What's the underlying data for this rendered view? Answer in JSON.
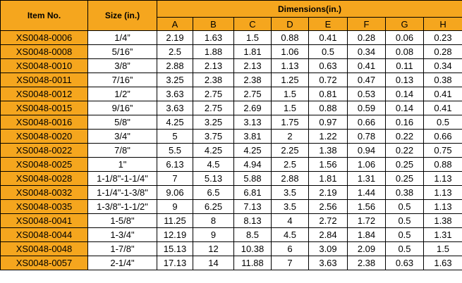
{
  "table": {
    "header": {
      "item": "Item No.",
      "size": "Size  (in.)",
      "dimensions": "Dimensions(in.)"
    },
    "columns": [
      "A",
      "B",
      "C",
      "D",
      "E",
      "F",
      "G",
      "H"
    ],
    "rows": [
      [
        "XS0048-0006",
        "1/4”",
        2.19,
        1.63,
        1.5,
        0.88,
        0.41,
        0.28,
        0.06,
        0.23
      ],
      [
        "XS0048-0008",
        "5/16”",
        2.5,
        1.88,
        1.81,
        1.06,
        0.5,
        0.34,
        0.08,
        0.28
      ],
      [
        "XS0048-0010",
        "3/8”",
        2.88,
        2.13,
        2.13,
        1.13,
        0.63,
        0.41,
        0.11,
        0.34
      ],
      [
        "XS0048-0011",
        "7/16”",
        3.25,
        2.38,
        2.38,
        1.25,
        0.72,
        0.47,
        0.13,
        0.38
      ],
      [
        "XS0048-0012",
        "1/2”",
        3.63,
        2.75,
        2.75,
        1.5,
        0.81,
        0.53,
        0.14,
        0.41
      ],
      [
        "XS0048-0015",
        "9/16”",
        3.63,
        2.75,
        2.69,
        1.5,
        0.88,
        0.59,
        0.14,
        0.41
      ],
      [
        "XS0048-0016",
        "5/8\"",
        4.25,
        3.25,
        3.13,
        1.75,
        0.97,
        0.66,
        0.16,
        0.5
      ],
      [
        "XS0048-0020",
        "3/4\"",
        5,
        3.75,
        3.81,
        2,
        1.22,
        0.78,
        0.22,
        0.66
      ],
      [
        "XS0048-0022",
        "7/8\"",
        5.5,
        4.25,
        4.25,
        2.25,
        1.38,
        0.94,
        0.22,
        0.75
      ],
      [
        "XS0048-0025",
        "1\"",
        6.13,
        4.5,
        4.94,
        2.5,
        1.56,
        1.06,
        0.25,
        0.88
      ],
      [
        "XS0048-0028",
        "1-1/8\"-1-1/4\"",
        7,
        5.13,
        5.88,
        2.88,
        1.81,
        1.31,
        0.25,
        1.13
      ],
      [
        "XS0048-0032",
        "1-1/4\"-1-3/8\"",
        9.06,
        6.5,
        6.81,
        3.5,
        2.19,
        1.44,
        0.38,
        1.13
      ],
      [
        "XS0048-0035",
        "1-3/8\"-1-1/2\"",
        9,
        6.25,
        7.13,
        3.5,
        2.56,
        1.56,
        0.5,
        1.13
      ],
      [
        "XS0048-0041",
        "1-5/8\"",
        11.25,
        8,
        8.13,
        4,
        2.72,
        1.72,
        0.5,
        1.38
      ],
      [
        "XS0048-0044",
        "1-3/4\"",
        12.19,
        9,
        8.5,
        4.5,
        2.84,
        1.84,
        0.5,
        1.31
      ],
      [
        "XS0048-0048",
        "1-7/8\"",
        15.13,
        12,
        10.38,
        6,
        3.09,
        2.09,
        0.5,
        1.5
      ],
      [
        "XS0048-0057",
        "2-1/4\"",
        17.13,
        14,
        11.88,
        7,
        3.63,
        2.38,
        0.63,
        1.63
      ]
    ]
  }
}
